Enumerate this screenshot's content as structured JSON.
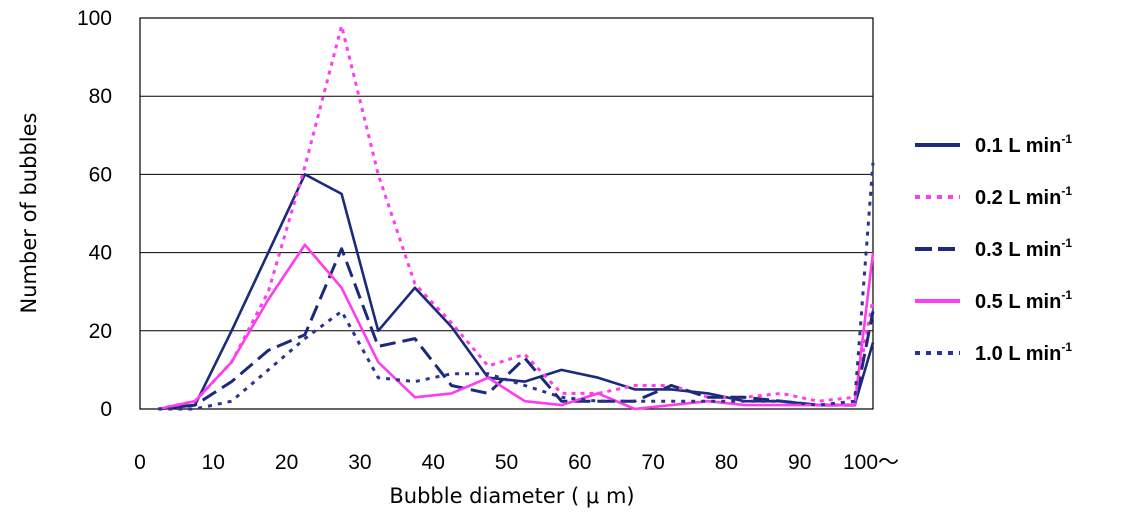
{
  "chart_data": {
    "type": "line",
    "title": "",
    "xlabel": "Bubble diameter ( μ m)",
    "ylabel": "Number of bubbles",
    "x": [
      2.5,
      7.5,
      12.5,
      17.5,
      22.5,
      27.5,
      32.5,
      37.5,
      42.5,
      47.5,
      52.5,
      57.5,
      62.5,
      67.5,
      72.5,
      77.5,
      82.5,
      87.5,
      92.5,
      97.5,
      100
    ],
    "x_ticks": [
      0,
      10,
      20,
      30,
      40,
      50,
      60,
      70,
      80,
      90,
      100
    ],
    "x_tick_labels": [
      "0",
      "10",
      "20",
      "30",
      "40",
      "50",
      "60",
      "70",
      "80",
      "90",
      "100～"
    ],
    "xlim": [
      0,
      100
    ],
    "ylim": [
      0,
      100
    ],
    "y_ticks": [
      0,
      20,
      40,
      60,
      80,
      100
    ],
    "y_tick_labels": [
      "0",
      "20",
      "40",
      "60",
      "80",
      "100"
    ],
    "grid": "horizontal",
    "legend_position": "right",
    "series": [
      {
        "name": "0.1 L min",
        "sup": "-1",
        "color": "#1b2a7a",
        "dash": "solid",
        "values": [
          0,
          1,
          20,
          40,
          60,
          55,
          20,
          31,
          21,
          8,
          7,
          10,
          8,
          5,
          5,
          4,
          2,
          2,
          1,
          1,
          17
        ]
      },
      {
        "name": "0.2 L min",
        "sup": "-1",
        "color": "#ff3cf0",
        "dash": "dot",
        "values": [
          0,
          2,
          12,
          30,
          62,
          98,
          60,
          32,
          22,
          11,
          14,
          4,
          4,
          6,
          6,
          3,
          3,
          4,
          2,
          3,
          28
        ]
      },
      {
        "name": "0.3 L min",
        "sup": "-1",
        "color": "#1b2a7a",
        "dash": "dash",
        "values": [
          0,
          1,
          7,
          15,
          19,
          41,
          16,
          18,
          6,
          4,
          13,
          2,
          2,
          2,
          6,
          3,
          3,
          2,
          1,
          1,
          25
        ]
      },
      {
        "name": "0.5 L min",
        "sup": "-1",
        "color": "#ff3cf0",
        "dash": "solid",
        "values": [
          0,
          2,
          12,
          28,
          42,
          31,
          12,
          3,
          4,
          8,
          2,
          1,
          4,
          0,
          1,
          2,
          1,
          1,
          1,
          1,
          40
        ]
      },
      {
        "name": "1.0 L min",
        "sup": "-1",
        "color": "#2a3490",
        "dash": "bigdot",
        "values": [
          0,
          0,
          2,
          10,
          18,
          25,
          8,
          7,
          9,
          9,
          6,
          3,
          2,
          2,
          2,
          2,
          2,
          2,
          1,
          2,
          63
        ]
      }
    ]
  }
}
